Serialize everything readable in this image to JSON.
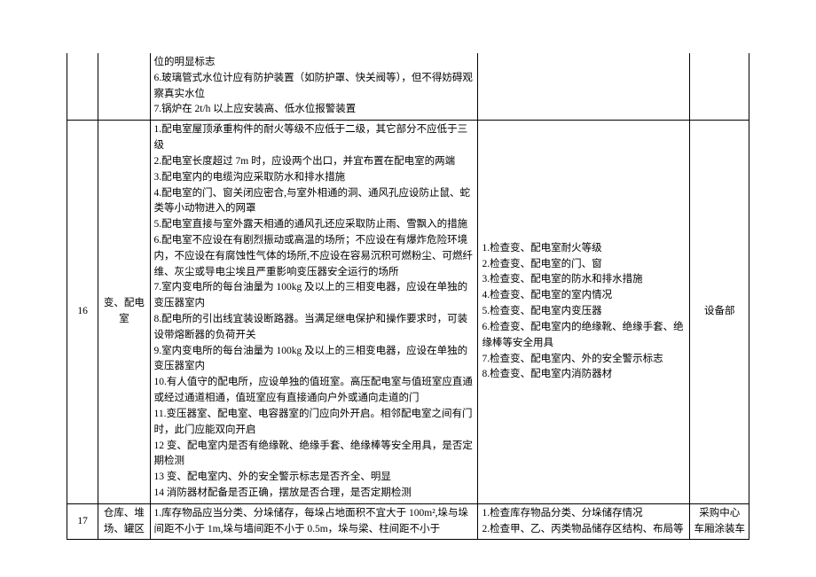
{
  "table": {
    "rows": [
      {
        "num": "",
        "name": "",
        "req": "位的明显标志\n6.玻璃管式水位计应有防护装置（如防护罩、快关阀等），但不得妨碍观察真实水位\n7.锅炉在 2t/h 以上应安装高、低水位报警装置",
        "check": "",
        "dept": "",
        "continuation": true
      },
      {
        "num": "16",
        "name": "变、配电室",
        "req": "1.配电室屋顶承重构件的耐火等级不应低于二级，其它部分不应低于三级\n2.配电室长度超过 7m 时，应设两个出口，并宜布置在配电室的两端\n3.配电室内的电缆沟应采取防水和排水措施\n4.配电室的门、窗关闭应密合,与室外相通的洞、通风孔应设防止鼠、蛇类等小动物进入的网罩\n5.配电室直接与室外露天相通的通风孔还应采取防止雨、雪飘入的措施\n6.配电室不应设在有剧烈振动或高温的场所；不应设在有爆炸危险环境内，不应设在有腐蚀性气体的场所,不应设在容易沉积可燃粉尘、可燃纤维、灰尘或导电尘埃且严重影响变压器安全运行的场所\n7.室内变电所的每台油量为 100kg 及以上的三相变电器，应设在单独的变压器室内\n8.配电所的引出线宜装设断路器。当满足继电保护和操作要求时，可装设带熔断器的负荷开关\n9.室内变电所的每台油量为 100kg 及以上的三相变电器，应设在单独的变压器室内\n10.有人值守的配电所，应设单独的值班室。高压配电室与值班室应直通或经过通道相通，值班室应有直接通向户外或通向走道的门\n11.变压器室、配电室、电容器室的门应向外开启。相邻配电室之间有门时，此门应能双向开启\n12 变、配电室内是否有绝缘靴、绝缘手套、绝缘棒等安全用具，是否定期检测\n13 变、配电室内、外的安全警示标志是否齐全、明显\n14 消防器材配备是否正确，摆放是否合理，是否定期检测",
        "check": "1.检查变、配电室耐火等级\n2.检查变、配电室的门、窗\n3.检查变、配电室的防水和排水措施\n4.检查变、配电室的室内情况\n5.检查变、配电室内变压器\n6.检查变、配电室内的绝缘靴、绝缘手套、绝缘棒等安全用具\n7.检查变、配电室内、外的安全警示标志\n8.检查变、配电室内消防器材",
        "dept": "设备部",
        "continuation": false
      },
      {
        "num": "17",
        "name": "仓库、堆场、罐区",
        "req": "1.库存物品应当分类、分垛储存，每垛占地面积不宜大于 100m²,垛与垛间距不小于 1m,垛与墙间距不小于 0.5m，垛与梁、柱间距不小于",
        "check": "1.检查库存物品分类、分垛储存情况\n2.检查甲、乙、丙类物品储存区结构、布局等",
        "dept": "采购中心\n车厢涂装车",
        "continuation": false
      }
    ]
  }
}
